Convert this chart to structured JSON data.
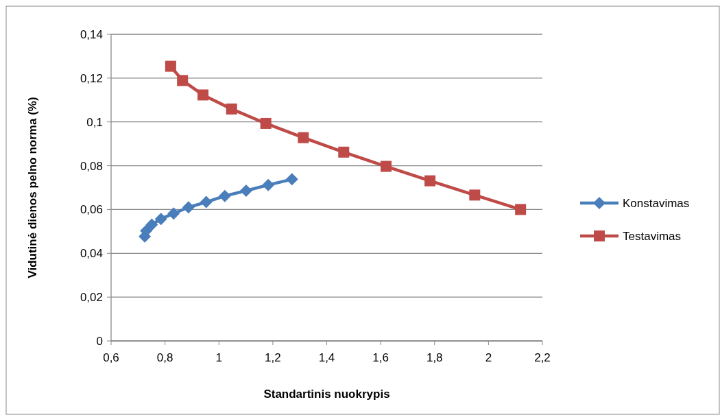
{
  "chart_data": {
    "type": "line",
    "xlabel": "Standartinis nuokrypis",
    "ylabel": "Vidutinė dienos pelno norma (%)",
    "xlim": [
      0.6,
      2.2
    ],
    "xticks": [
      {
        "value": 0.6,
        "label": "0,6"
      },
      {
        "value": 0.8,
        "label": "0,8"
      },
      {
        "value": 1,
        "label": "1"
      },
      {
        "value": 1.2,
        "label": "1,2"
      },
      {
        "value": 1.4,
        "label": "1,4"
      },
      {
        "value": 1.6,
        "label": "1,6"
      },
      {
        "value": 1.8,
        "label": "1,8"
      },
      {
        "value": 2,
        "label": "2"
      },
      {
        "value": 2.2,
        "label": "2,2"
      }
    ],
    "ylim": [
      0,
      0.14
    ],
    "yticks": [
      0,
      {
        "value": 0.02,
        "label": "0,02"
      },
      {
        "value": 0.04,
        "label": "0,04"
      },
      {
        "value": 0.06,
        "label": "0,06"
      },
      {
        "value": 0.08,
        "label": "0,08"
      },
      {
        "value": 0.1,
        "label": "0,1"
      },
      {
        "value": 0.12,
        "label": "0,12"
      },
      {
        "value": 0.14,
        "label": "0,14"
      }
    ],
    "grid": "y",
    "legend": "right",
    "series": [
      {
        "name": "Konstavimas",
        "color": "#4a7ebb",
        "marker": "diamond",
        "x": [
          0.725,
          0.73,
          0.751,
          0.785,
          0.832,
          0.887,
          0.953,
          1.022,
          1.101,
          1.183,
          1.271
        ],
        "values": [
          0.0477,
          0.0503,
          0.0531,
          0.0557,
          0.0582,
          0.061,
          0.0634,
          0.0662,
          0.0686,
          0.0712,
          0.0738
        ]
      },
      {
        "name": "Testavimas",
        "color": "#be4b48",
        "marker": "square",
        "x": [
          0.821,
          0.865,
          0.941,
          1.047,
          1.174,
          1.313,
          1.463,
          1.62,
          1.783,
          1.949,
          2.119
        ],
        "values": [
          0.1254,
          0.1189,
          0.1123,
          0.1059,
          0.0993,
          0.0928,
          0.0862,
          0.0797,
          0.0731,
          0.0666,
          0.06
        ]
      }
    ]
  }
}
